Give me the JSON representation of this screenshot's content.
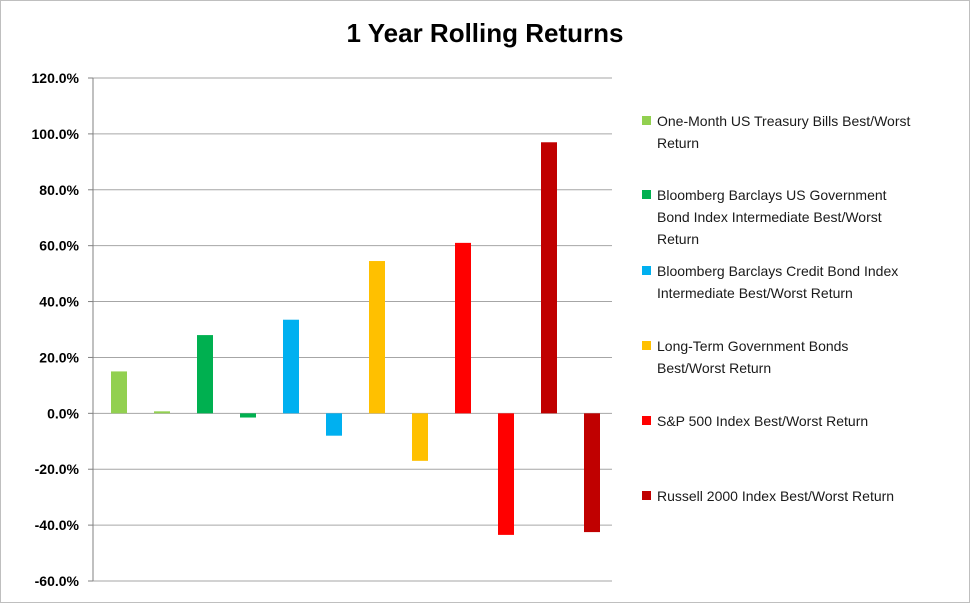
{
  "chart_data": {
    "type": "bar",
    "title": "1 Year Rolling Returns",
    "xlabel": "",
    "ylabel": "",
    "ylim": [
      -60,
      120
    ],
    "yticks": [
      "120.0%",
      "100.0%",
      "80.0%",
      "60.0%",
      "40.0%",
      "20.0%",
      "0.0%",
      "-20.0%",
      "-40.0%",
      "-60.0%"
    ],
    "ytick_values": [
      120,
      100,
      80,
      60,
      40,
      20,
      0,
      -20,
      -40,
      -60
    ],
    "grid": true,
    "legend_position": "right",
    "series": [
      {
        "name": "One-Month US Treasury Bills Best/Worst Return",
        "color": "#92d050",
        "values": [
          15,
          0.5
        ]
      },
      {
        "name": "Bloomberg Barclays US Government Bond Index Intermediate Best/Worst Return",
        "color": "#00b050",
        "values": [
          28,
          -1.5
        ]
      },
      {
        "name": "Bloomberg Barclays Credit Bond Index Intermediate Best/Worst Return",
        "color": "#00b0f0",
        "values": [
          33.5,
          -8
        ]
      },
      {
        "name": "Long-Term Government Bonds Best/Worst Return",
        "color": "#ffc000",
        "values": [
          54.5,
          -17
        ]
      },
      {
        "name": "S&P 500 Index Best/Worst Return",
        "color": "#ff0000",
        "values": [
          61,
          -43.5
        ]
      },
      {
        "name": "Russell 2000 Index Best/Worst Return",
        "color": "#c00000",
        "values": [
          97,
          -42.5
        ]
      }
    ]
  },
  "legend": {
    "items": [
      {
        "line1": "One-Month US Treasury Bills Best/Worst",
        "line2": "Return",
        "line3": ""
      },
      {
        "line1": "Bloomberg Barclays US Government",
        "line2": "Bond Index Intermediate Best/Worst",
        "line3": "Return"
      },
      {
        "line1": "Bloomberg Barclays Credit Bond Index",
        "line2": "Intermediate Best/Worst Return",
        "line3": ""
      },
      {
        "line1": "Long-Term Government Bonds",
        "line2": "Best/Worst Return",
        "line3": ""
      },
      {
        "line1": "S&P 500 Index Best/Worst Return",
        "line2": "",
        "line3": ""
      },
      {
        "line1": "Russell 2000 Index Best/Worst Return",
        "line2": "",
        "line3": ""
      }
    ]
  }
}
